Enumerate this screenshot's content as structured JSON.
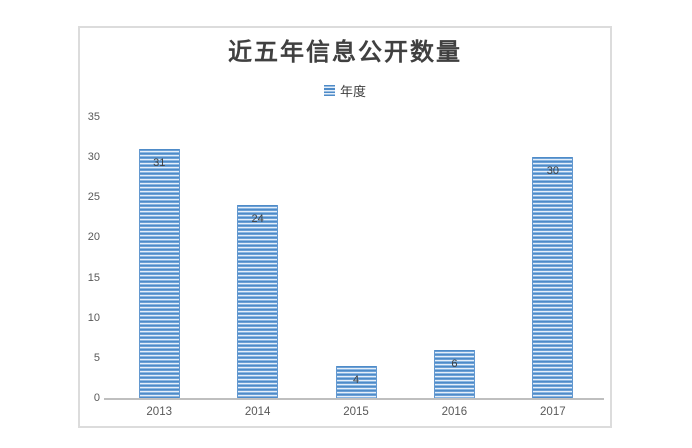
{
  "chart_data": {
    "type": "bar",
    "title": "近五年信息公开数量",
    "legend": [
      {
        "label": "年度",
        "marker": "striped-blue-square"
      }
    ],
    "legend_position": "top-center",
    "categories": [
      "2013",
      "2014",
      "2015",
      "2016",
      "2017"
    ],
    "series": [
      {
        "name": "年度",
        "values": [
          31,
          24,
          4,
          6,
          30
        ]
      }
    ],
    "data_labels_shown": true,
    "xlabel": "",
    "ylabel": "",
    "ylim": [
      0,
      35
    ],
    "yticks": [
      0,
      5,
      10,
      15,
      20,
      25,
      30,
      35
    ],
    "grid": false
  },
  "colors": {
    "bar_stripe_dark": "#4e8bc8",
    "bar_stripe_light": "#e6eff9",
    "bar_edge": "#6398cf",
    "axis_line": "#bfbfbf",
    "frame_border": "#dcdcdc",
    "title_text": "#404040",
    "tick_text": "#595959",
    "data_label_text": "#404040",
    "background": "#ffffff"
  }
}
